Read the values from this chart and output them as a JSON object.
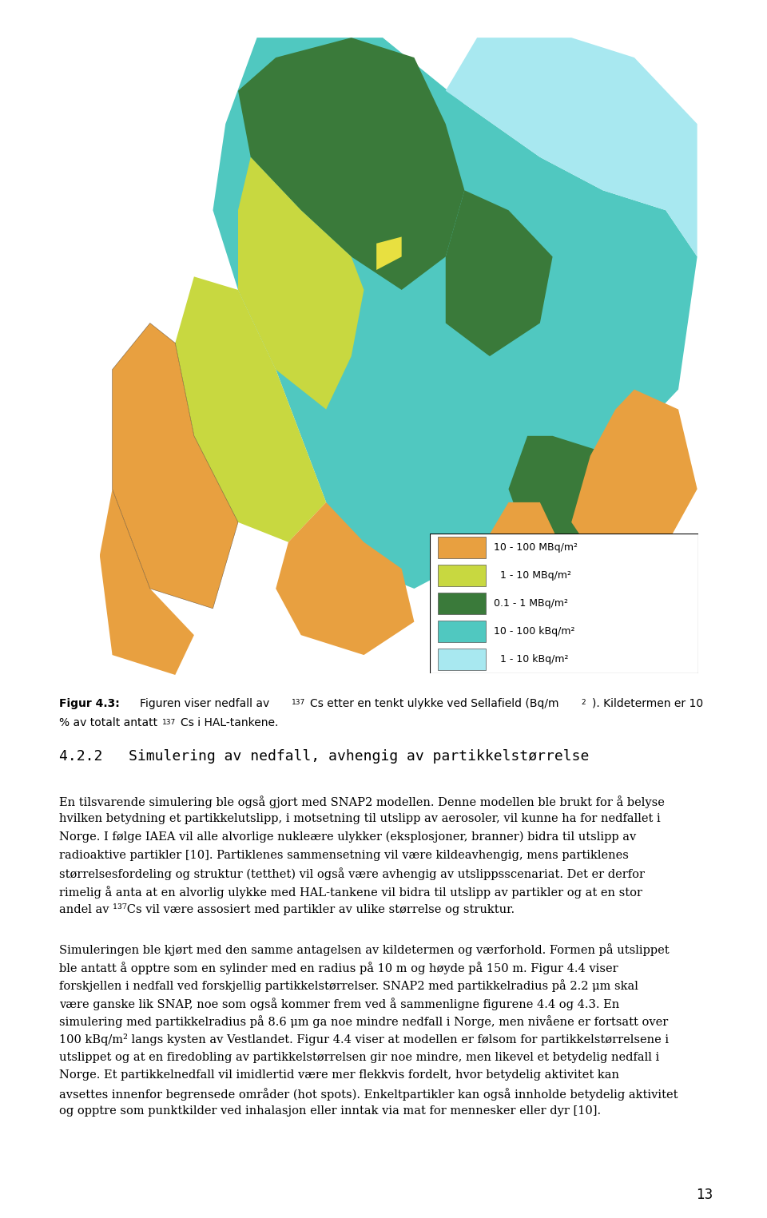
{
  "figsize": [
    9.6,
    15.25
  ],
  "dpi": 100,
  "background_color": "#ffffff",
  "legend_items": [
    {
      "color": "#E8A040",
      "label": "10 - 100 MBq/m²"
    },
    {
      "color": "#C8D840",
      "label": "  1 - 10 MBq/m²"
    },
    {
      "color": "#3A7A3A",
      "label": "0.1 - 1 MBq/m²"
    },
    {
      "color": "#50C8C0",
      "label": "10 - 100 kBq/m²"
    },
    {
      "color": "#A8E8F0",
      "label": "  1 - 10 kBq/m²"
    }
  ],
  "caption_label": "Figur 4.3:",
  "caption_line1a": "Figuren viser nedfall av ",
  "caption_sup1": "137",
  "caption_line1b": "Cs etter en tenkt ulykke ved Sellafield (Bq/m",
  "caption_sup2": "2",
  "caption_line1c": "). Kildetermen er 10",
  "caption_line2a": "% av totalt antatt ",
  "caption_sup3": "137",
  "caption_line2b": "Cs i HAL-tankene.",
  "section_heading": "4.2.2   Simulering av nedfall, avhengig av partikkelstørrelse",
  "para1_lines": [
    "En tilsvarende simulering ble også gjort med SNAP2 modellen. Denne modellen ble brukt for å belyse",
    "hvilken betydning et partikkelutslipp, i motsetning til utslipp av aerosoler, vil kunne ha for nedfallet i",
    "Norge. I følge IAEA vil alle alvorlige nukleære ulykker (eksplosjoner, branner) bidra til utslipp av",
    "radioaktive partikler [10]. Partiklenes sammensetning vil være kildeavhengig, mens partiklenes",
    "størrelsesfordeling og struktur (tetthet) vil også være avhengig av utslippsscenariat. Det er derfor",
    "rimelig å anta at en alvorlig ulykke med HAL-tankene vil bidra til utslipp av partikler og at en stor",
    "andel av ¹³⁷Cs vil være assosiert med partikler av ulike størrelse og struktur."
  ],
  "para2_lines": [
    "Simuleringen ble kjørt med den samme antagelsen av kildetermen og værforhold. Formen på utslippet",
    "ble antatt å opptre som en sylinder med en radius på 10 m og høyde på 150 m. Figur 4.4 viser",
    "forskjellen i nedfall ved forskjellig partikkelstørrelser. SNAP2 med partikkelradius på 2.2 μm skal",
    "være ganske lik SNAP, noe som også kommer frem ved å sammenligne figurene 4.4 og 4.3. En",
    "simulering med partikkelradius på 8.6 μm ga noe mindre nedfall i Norge, men nivåene er fortsatt over",
    "100 kBq/m² langs kysten av Vestlandet. Figur 4.4 viser at modellen er følsom for partikkelstørrelsene i",
    "utslippet og at en firedobling av partikkelstørrelsen gir noe mindre, men likevel et betydelig nedfall i",
    "Norge. Et partikkelnedfall vil imidlertid være mer flekkvis fordelt, hvor betydelig aktivitet kan",
    "avsettes innenfor begrensede områder (hot spots). Enkeltpartikler kan også innholde betydelig aktivitet",
    "og opptre som punktkilder ved inhalasjon eller inntak via mat for mennesker eller dyr [10]."
  ],
  "page_number": "13",
  "text_fontsize": 10.5,
  "caption_fontsize": 10.0,
  "heading_fontsize": 13.0,
  "map_colors": {
    "orange": "#E8A040",
    "yellow_green": "#C8D840",
    "dark_green": "#3A7A3A",
    "teal": "#50C8C0",
    "light_blue": "#A8E8F0",
    "white": "#FFFFFF",
    "black": "#000000"
  }
}
